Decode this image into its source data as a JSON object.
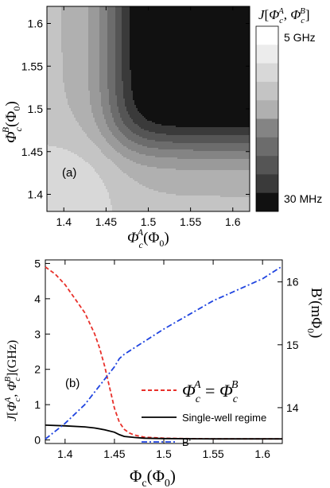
{
  "chart_data": [
    {
      "type": "heatmap",
      "panel_label": "(a)",
      "xlabel": "Φ_c^A(Φ_0)",
      "ylabel": "Φ_c^B(Φ_0)",
      "xlim": [
        1.38,
        1.62
      ],
      "ylim": [
        1.38,
        1.62
      ],
      "x_ticks": [
        "1.4",
        "1.45",
        "1.5",
        "1.55",
        "1.6"
      ],
      "y_ticks": [
        "1.4",
        "1.45",
        "1.5",
        "1.55",
        "1.6"
      ],
      "colorbar_title": "J[Φ_c^A, Φ_c^B]",
      "colorbar_top_label": "5 GHz",
      "colorbar_bottom_label": "30 MHz",
      "colorbar_levels": 10,
      "colormap": "white-to-black grayscale",
      "feature": "saddle point near (1.46, 1.46); white (high J) lower-left, black (low J) upper-right"
    },
    {
      "type": "line",
      "panel_label": "(b)",
      "xlabel": "Φ_c(Φ_0)",
      "ylabel_left": "J[Φ_c^A, Φ_c^B](GHz)",
      "ylabel_right": "B'(mΦ_0)",
      "xlim": [
        1.38,
        1.62
      ],
      "ylim_left": [
        -0.1,
        5.1
      ],
      "ylim_right": [
        13.43,
        16.35
      ],
      "x_ticks": [
        "1.4",
        "1.45",
        "1.5",
        "1.55",
        "1.6"
      ],
      "y_ticks_left": [
        "0",
        "1",
        "2",
        "3",
        "4",
        "5"
      ],
      "y_ticks_right": [
        "14",
        "15",
        "16"
      ],
      "series": [
        {
          "name": "Φ_c^A = Φ_c^B",
          "color": "#e8302a",
          "style": "dashed",
          "axis": "left",
          "x": [
            1.38,
            1.39,
            1.4,
            1.41,
            1.42,
            1.43,
            1.435,
            1.44,
            1.445,
            1.45,
            1.455,
            1.46,
            1.465,
            1.47,
            1.48,
            1.5,
            1.52,
            1.55,
            1.58,
            1.62
          ],
          "y": [
            4.9,
            4.7,
            4.4,
            4.0,
            3.6,
            3.0,
            2.6,
            2.1,
            1.5,
            0.9,
            0.5,
            0.3,
            0.2,
            0.14,
            0.08,
            0.05,
            0.04,
            0.03,
            0.03,
            0.03
          ]
        },
        {
          "name": "Single-well regime",
          "color": "#000000",
          "style": "solid",
          "axis": "left",
          "x": [
            1.38,
            1.4,
            1.42,
            1.43,
            1.44,
            1.45,
            1.455,
            1.46,
            1.47,
            1.48,
            1.5,
            1.55,
            1.6,
            1.62
          ],
          "y": [
            0.42,
            0.4,
            0.37,
            0.34,
            0.29,
            0.22,
            0.15,
            0.1,
            0.07,
            0.05,
            0.04,
            0.03,
            0.03,
            0.03
          ]
        },
        {
          "name": "B'",
          "color": "#1f44e0",
          "style": "dashdot",
          "axis": "right",
          "x": [
            1.38,
            1.4,
            1.42,
            1.44,
            1.45,
            1.455,
            1.46,
            1.5,
            1.55,
            1.6,
            1.62
          ],
          "y": [
            13.5,
            13.75,
            14.05,
            14.45,
            14.65,
            14.78,
            14.85,
            15.25,
            15.7,
            16.05,
            16.25
          ]
        }
      ],
      "legend_position": "center-right"
    }
  ]
}
